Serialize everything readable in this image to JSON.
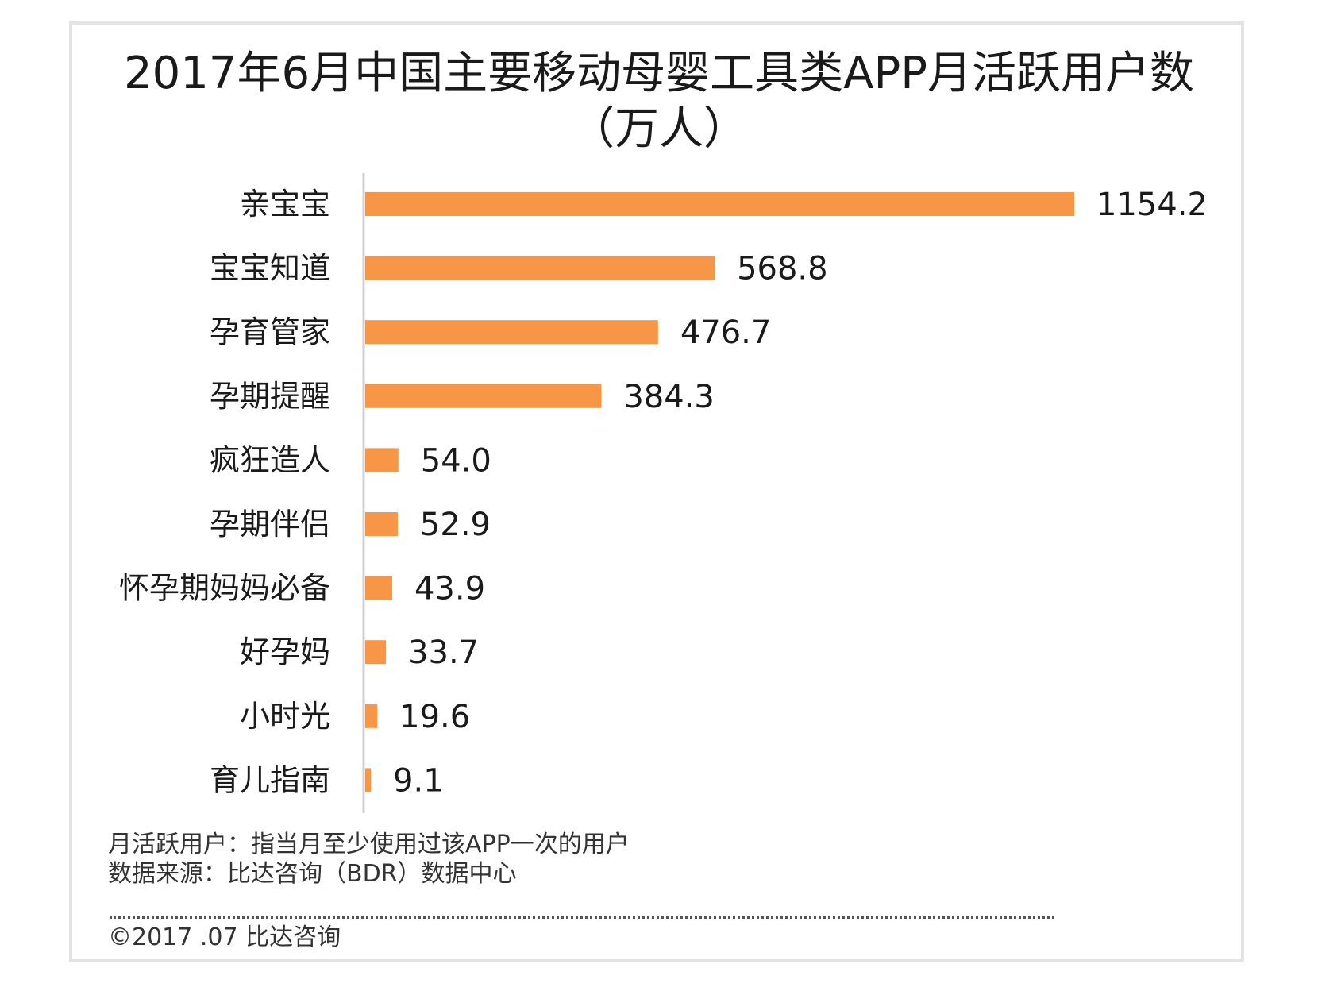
{
  "chart_data": {
    "type": "bar",
    "orientation": "horizontal",
    "title": "2017年6月中国主要移动母婴工具类APP月活跃用户数",
    "subtitle": "（万人）",
    "categories": [
      "亲宝宝",
      "宝宝知道",
      "孕育管家",
      "孕期提醒",
      "疯狂造人",
      "孕期伴侣",
      "怀孕期妈妈必备",
      "好孕妈",
      "小时光",
      "育儿指南"
    ],
    "values": [
      1154.2,
      568.8,
      476.7,
      384.3,
      54.0,
      52.9,
      43.9,
      33.7,
      19.6,
      9.1
    ],
    "value_labels": [
      "1154.2",
      "568.8",
      "476.7",
      "384.3",
      "54.0",
      "52.9",
      "43.9",
      "33.7",
      "19.6",
      "9.1"
    ],
    "xlim": [
      0,
      1154.2
    ],
    "bar_color": "#F79646",
    "axis_color": "#d0d0d0",
    "grid": false,
    "legend": "none"
  },
  "notes": {
    "definition": "月活跃用户：指当月至少使用过该APP一次的用户",
    "source": "数据来源：比达咨询（BDR）数据中心"
  },
  "copyright": "©2017 .07  比达咨询"
}
